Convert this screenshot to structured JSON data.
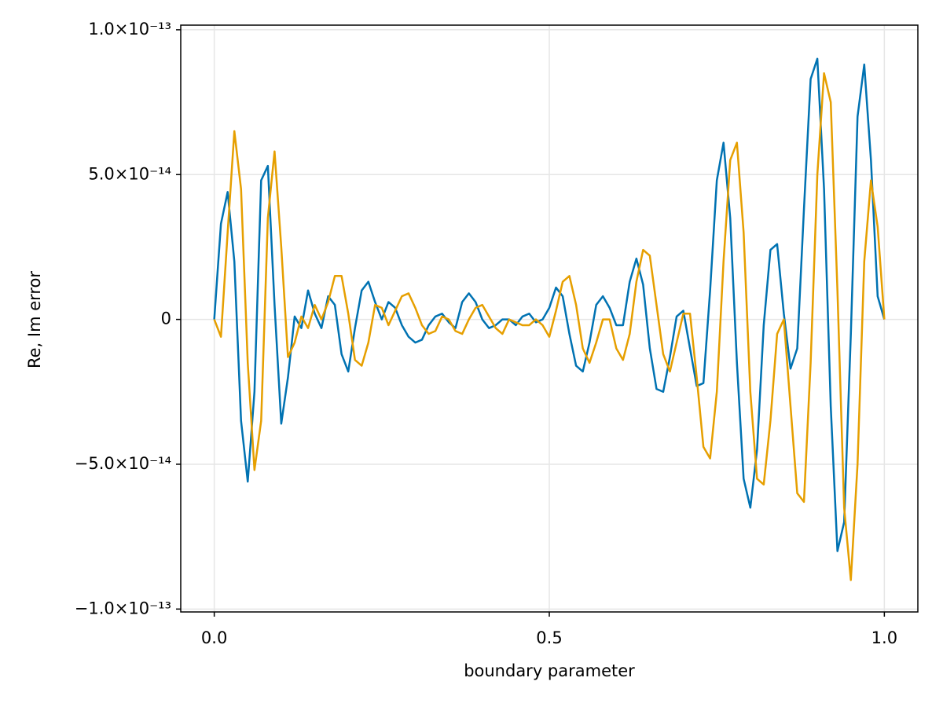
{
  "chart_data": {
    "type": "line",
    "x_label": "boundary parameter",
    "y_label": "Re, Im error",
    "xlim": [
      -0.05,
      1.05
    ],
    "ylim": [
      -1.01e-13,
      1.016e-13
    ],
    "xticks": [
      {
        "value": 0,
        "label": "0.0"
      },
      0.5,
      {
        "value": 1,
        "label": "1.0"
      }
    ],
    "yticks": [
      {
        "value": -1e-13,
        "label": "−1.0×10⁻¹³"
      },
      {
        "value": -5e-14,
        "label": "−5.0×10⁻¹⁴"
      },
      0,
      {
        "value": 5e-14,
        "label": "5.0×10⁻¹⁴"
      },
      {
        "value": 1e-13,
        "label": "1.0×10⁻¹³"
      }
    ],
    "grid": true,
    "x": [
      0,
      0.01,
      0.02,
      0.03,
      0.04,
      0.05,
      0.06,
      0.07,
      0.08,
      0.09,
      0.1,
      0.11,
      0.12,
      0.13,
      0.14,
      0.15,
      0.16,
      0.17,
      0.18,
      0.19,
      0.2,
      0.21,
      0.22,
      0.23,
      0.24,
      0.25,
      0.26,
      0.27,
      0.28,
      0.29,
      0.3,
      0.31,
      0.32,
      0.33,
      0.34,
      0.35,
      0.36,
      0.37,
      0.38,
      0.39,
      0.4,
      0.41,
      0.42,
      0.43,
      0.44,
      0.45,
      0.46,
      0.47,
      0.48,
      0.49,
      0.5,
      0.51,
      0.52,
      0.53,
      0.54,
      0.55,
      0.56,
      0.57,
      0.58,
      0.59,
      0.6,
      0.61,
      0.62,
      0.63,
      0.64,
      0.65,
      0.66,
      0.67,
      0.68,
      0.69,
      0.7,
      0.71,
      0.72,
      0.73,
      0.74,
      0.75,
      0.76,
      0.77,
      0.78,
      0.79,
      0.8,
      0.81,
      0.82,
      0.83,
      0.84,
      0.85,
      0.86,
      0.87,
      0.88,
      0.89,
      0.9,
      0.91,
      0.92,
      0.93,
      0.94,
      0.95,
      0.96,
      0.97,
      0.98,
      0.99,
      1
    ],
    "series": [
      {
        "color": "#0072b2",
        "values": [
          0,
          3.3e-14,
          4.4e-14,
          2e-14,
          -3.5e-14,
          -5.6e-14,
          -2.5e-14,
          4.8e-14,
          5.3e-14,
          5e-15,
          -3.6e-14,
          -2e-14,
          1e-15,
          -3e-15,
          1e-14,
          2e-15,
          -3e-15,
          8e-15,
          5e-15,
          -1.2e-14,
          -1.8e-14,
          -3e-15,
          1e-14,
          1.3e-14,
          6e-15,
          0,
          6e-15,
          4e-15,
          -2e-15,
          -6e-15,
          -8e-15,
          -7e-15,
          -2e-15,
          1e-15,
          2e-15,
          -1e-15,
          -3e-15,
          6e-15,
          9e-15,
          6e-15,
          0,
          -3e-15,
          -2e-15,
          0,
          0,
          -2e-15,
          1e-15,
          2e-15,
          -1e-15,
          0,
          4e-15,
          1.1e-14,
          8e-15,
          -5e-15,
          -1.6e-14,
          -1.8e-14,
          -8e-15,
          5e-15,
          8e-15,
          4e-15,
          -2e-15,
          -2e-15,
          1.3e-14,
          2.1e-14,
          1.2e-14,
          -1e-14,
          -2.4e-14,
          -2.5e-14,
          -1.3e-14,
          1e-15,
          3e-15,
          -1e-14,
          -2.3e-14,
          -2.2e-14,
          1e-14,
          4.8e-14,
          6.1e-14,
          3.5e-14,
          -1.5e-14,
          -5.5e-14,
          -6.5e-14,
          -4.5e-14,
          -2e-15,
          2.4e-14,
          2.6e-14,
          2e-15,
          -1.7e-14,
          -1e-14,
          3.8e-14,
          8.3e-14,
          9e-14,
          4.5e-14,
          -3e-14,
          -8e-14,
          -7e-14,
          -5e-15,
          7e-14,
          8.8e-14,
          5.5e-14,
          8e-15,
          0
        ]
      },
      {
        "color": "#e69f00",
        "values": [
          0,
          -6e-15,
          3e-14,
          6.5e-14,
          4.5e-14,
          -1.5e-14,
          -5.2e-14,
          -3.5e-14,
          3.5e-14,
          5.8e-14,
          2.5e-14,
          -1.3e-14,
          -8e-15,
          1e-15,
          -3e-15,
          5e-15,
          0,
          6e-15,
          1.5e-14,
          1.5e-14,
          2e-15,
          -1.4e-14,
          -1.6e-14,
          -8e-15,
          5e-15,
          4e-15,
          -2e-15,
          3e-15,
          8e-15,
          9e-15,
          4e-15,
          -2e-15,
          -5e-15,
          -4e-15,
          1e-15,
          0,
          -4e-15,
          -5e-15,
          0,
          4e-15,
          5e-15,
          1e-15,
          -3e-15,
          -5e-15,
          0,
          -1e-15,
          -2e-15,
          -2e-15,
          0,
          -2e-15,
          -6e-15,
          3e-15,
          1.3e-14,
          1.5e-14,
          5e-15,
          -1e-14,
          -1.5e-14,
          -8e-15,
          0,
          0,
          -1e-14,
          -1.4e-14,
          -5e-15,
          1.3e-14,
          2.4e-14,
          2.2e-14,
          5e-15,
          -1.2e-14,
          -1.8e-14,
          -8e-15,
          2e-15,
          2e-15,
          -2e-14,
          -4.4e-14,
          -4.8e-14,
          -2.5e-14,
          2e-14,
          5.5e-14,
          6.1e-14,
          3e-14,
          -2.5e-14,
          -5.5e-14,
          -5.7e-14,
          -3.5e-14,
          -5e-15,
          0,
          -3e-14,
          -6e-14,
          -6.3e-14,
          -1.5e-14,
          5e-14,
          8.5e-14,
          7.5e-14,
          1e-14,
          -6.5e-14,
          -9e-14,
          -5e-14,
          2e-14,
          4.8e-14,
          3.2e-14,
          0
        ]
      }
    ]
  }
}
